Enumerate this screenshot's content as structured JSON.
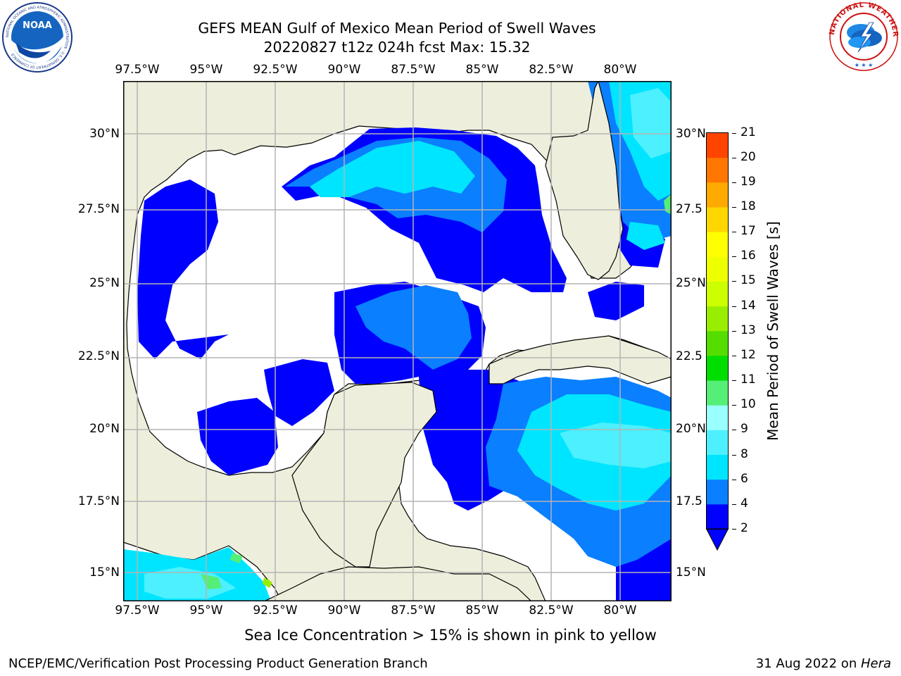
{
  "header": {
    "title_line1": "GEFS MEAN Gulf of Mexico Mean Period of Swell Waves",
    "title_line2": "20220827 t12z 024h fcst   Max: 15.32"
  },
  "logos": {
    "left": {
      "name": "noaa-logo",
      "text": "NOAA",
      "ring_text": "NATIONAL OCEANIC AND ATMOSPHERIC ADMINISTRATION · U.S. DEPARTMENT OF COMMERCE"
    },
    "right": {
      "name": "nws-logo",
      "ring_text": "NATIONAL WEATHER SERVICE"
    }
  },
  "map": {
    "region": "Gulf of Mexico",
    "lon_ticks": [
      "97.5°W",
      "95°W",
      "92.5°W",
      "90°W",
      "87.5°W",
      "85°W",
      "82.5°W",
      "80°W"
    ],
    "lat_ticks_left": [
      "30°N",
      "27.5°N",
      "25°N",
      "22.5°N",
      "20°N",
      "17.5°N",
      "15°N"
    ],
    "lat_ticks_right": [
      "30°N",
      "27.5",
      "25°N",
      "22.5",
      "20°N",
      "17.5",
      "15°N"
    ],
    "colors": {
      "land": "#eeeedc",
      "ocean_nodata": "#ffffff",
      "grid": "#b4b4b4"
    }
  },
  "colorbar": {
    "label": "Mean Period of Swell Waves [s]",
    "ticks": [
      "2",
      "4",
      "6",
      "8",
      "9",
      "10",
      "11",
      "12",
      "13",
      "14",
      "15",
      "16",
      "17",
      "18",
      "19",
      "20",
      "21"
    ],
    "colors": [
      "#0000ff",
      "#0a7fff",
      "#00e5ff",
      "#4cf0ff",
      "#99ffff",
      "#55ee77",
      "#00dd00",
      "#55dd00",
      "#99ee00",
      "#ccff00",
      "#eeff00",
      "#ffff00",
      "#ffd700",
      "#ffaa00",
      "#ff7700",
      "#ff4400",
      "#ff0000"
    ]
  },
  "footer": {
    "note": "Sea Ice Concentration > 15% is shown in pink to yellow",
    "credit": "NCEP/EMC/Verification Post Processing Product Generation Branch",
    "date": "31 Aug 2022 on ",
    "system": "Hera"
  }
}
